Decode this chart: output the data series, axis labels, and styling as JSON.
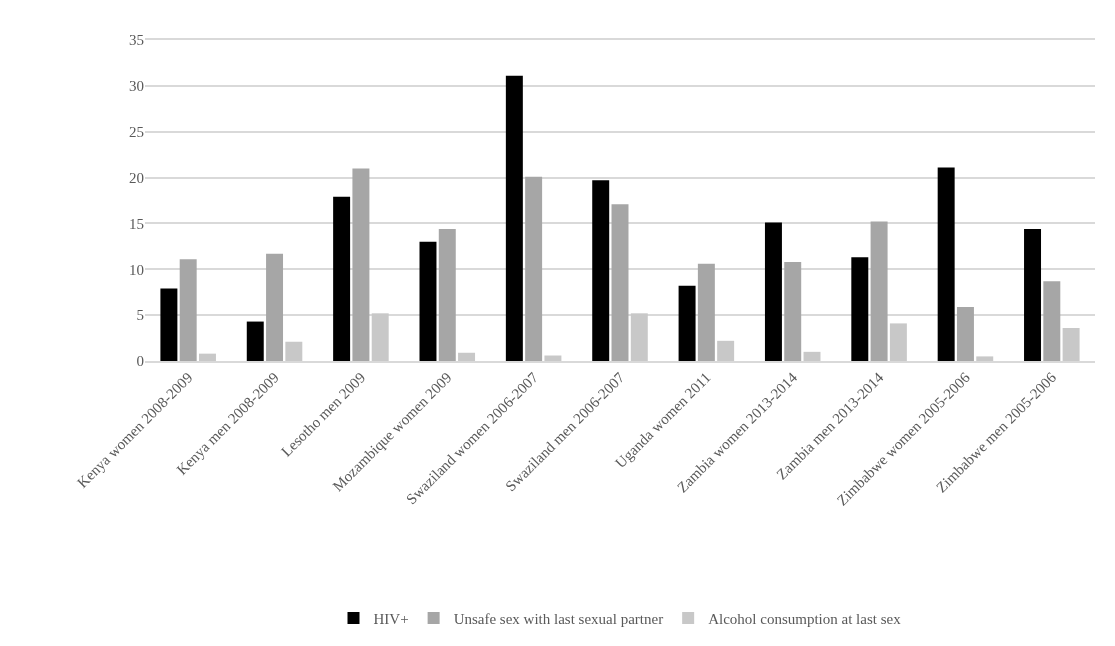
{
  "chart_data": {
    "type": "bar",
    "categories": [
      "Kenya women 2008-2009",
      "Kenya men 2008-2009",
      "Lesotho men 2009",
      "Mozambique women 2009",
      "Swaziland women 2006-2007",
      "Swaziland men 2006-2007",
      "Uganda women 2011",
      "Zambia women 2013-2014",
      "Zambia men 2013-2014",
      "Zimbabwe women 2005-2006",
      "Zimbabwe men 2005-2006"
    ],
    "series": [
      {
        "name": "HIV+",
        "color": "#000000",
        "values": [
          7.9,
          4.3,
          17.9,
          13.0,
          31.1,
          19.7,
          8.2,
          15.1,
          11.3,
          21.1,
          14.4
        ]
      },
      {
        "name": "Unsafe sex with last sexual partner",
        "color": "#a6a6a6",
        "values": [
          11.1,
          11.7,
          21.0,
          14.4,
          20.1,
          17.1,
          10.6,
          10.8,
          15.2,
          5.9,
          8.7
        ]
      },
      {
        "name": "Alcohol consumption at last sex",
        "color": "#c8c8c8",
        "values": [
          0.8,
          2.1,
          5.2,
          0.9,
          0.6,
          5.2,
          2.2,
          1.0,
          4.1,
          0.5,
          3.6
        ]
      }
    ],
    "ylim": [
      0,
      35
    ],
    "yticks": [
      0,
      5,
      10,
      15,
      20,
      25,
      30,
      35
    ],
    "grid": "y",
    "legend": "bottom"
  }
}
